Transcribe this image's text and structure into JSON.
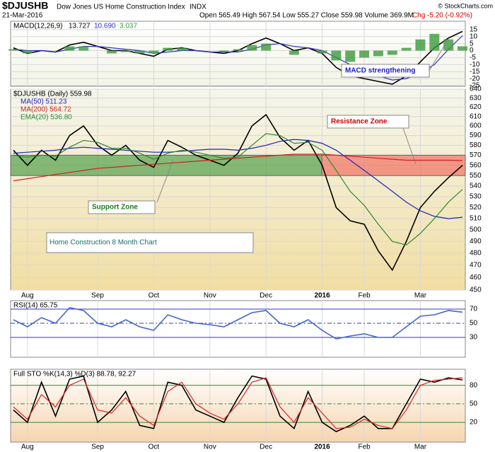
{
  "header": {
    "symbol": "$DJUSHB",
    "name": "Dow Jones US Home Construction Index",
    "exchange": "INDX",
    "date": "21-Mar-2016",
    "ohlc": "Open 565.49 High 567.54 Low 555.27 Close 559.98 Volume 369.9M",
    "change": "Chg -5.20 (-0.92%)",
    "credit": "© StockCharts.com"
  },
  "chart_data": [
    {
      "type": "line",
      "legend": "MACD(12,26,9)",
      "ylim": [
        -25.5,
        21
      ],
      "yticks": [
        15,
        10,
        5,
        0,
        -5,
        -10,
        -15,
        -20,
        -25
      ],
      "grid": true,
      "annotation": "MACD strengthening",
      "series": [
        {
          "name": "13.727",
          "color": "#000000",
          "values": [
            2,
            -2,
            0,
            -1,
            4,
            6,
            3,
            0,
            0,
            -2,
            -4,
            1,
            2,
            0,
            -1,
            -2,
            0,
            5,
            9,
            5,
            0,
            2,
            -2,
            -12,
            -18,
            -20,
            -22,
            -24,
            -18,
            -8,
            2,
            9,
            13.727
          ]
        },
        {
          "name": "10.690",
          "color": "#3333cc",
          "values": [
            1,
            0,
            0,
            -1,
            1,
            3,
            3,
            2,
            1,
            0,
            -2,
            -1,
            0,
            0,
            -1,
            -1,
            -1,
            1,
            4,
            5,
            3,
            2,
            0,
            -5,
            -10,
            -15,
            -18,
            -21,
            -20,
            -16,
            -10,
            1,
            10.69
          ]
        },
        {
          "name": "3.037",
          "type": "bar",
          "color": "#3c9a3c",
          "values": [
            1,
            -2,
            0,
            0,
            3,
            3,
            0,
            -2,
            -1,
            -2,
            -2,
            2,
            2,
            0,
            0,
            -1,
            1,
            4,
            5,
            0,
            -3,
            0,
            -2,
            -7,
            -8,
            -5,
            -4,
            -3,
            2,
            8,
            12,
            8,
            3.037
          ]
        }
      ]
    },
    {
      "type": "line",
      "legend": "$DJUSHB (Daily) 559.98",
      "log_scale": true,
      "ylim": [
        450,
        640
      ],
      "yticks": [
        450,
        460,
        470,
        480,
        490,
        500,
        510,
        520,
        530,
        540,
        550,
        560,
        570,
        580,
        590,
        600,
        610,
        620,
        630,
        640
      ],
      "grid": true,
      "categories": [
        null,
        "Aug",
        null,
        null,
        null,
        null,
        "Sep",
        null,
        null,
        null,
        "Oct",
        null,
        null,
        null,
        "Nov",
        null,
        null,
        null,
        "Dec",
        null,
        null,
        null,
        "2016",
        null,
        null,
        "Feb",
        null,
        null,
        null,
        "Mar",
        null,
        null,
        null
      ],
      "title": "Home Construction 8 Month Chart",
      "zones": [
        {
          "label": "Support Zone",
          "range": [
            550,
            570
          ],
          "color": "rgba(40,140,40,0.55)"
        },
        {
          "label": "Resistance Zone",
          "range": [
            550,
            570
          ],
          "color": "rgba(240,80,70,0.55)"
        }
      ],
      "series": [
        {
          "name": "$DJUSHB",
          "color": "#000000",
          "values": [
            575,
            560,
            575,
            565,
            590,
            600,
            580,
            570,
            580,
            565,
            558,
            585,
            578,
            570,
            565,
            560,
            572,
            600,
            612,
            588,
            575,
            585,
            560,
            520,
            508,
            505,
            482,
            466,
            490,
            520,
            535,
            548,
            559.98
          ]
        },
        {
          "name": "MA(50) 511.23",
          "color": "#2222bb",
          "values": [
            572,
            573,
            574,
            575,
            577,
            578,
            577,
            576,
            575,
            574,
            573,
            573,
            574,
            575,
            576,
            576,
            575,
            577,
            580,
            584,
            586,
            585,
            582,
            575,
            565,
            555,
            545,
            535,
            525,
            517,
            512,
            510,
            511.23
          ]
        },
        {
          "name": "MA(200) 564.72",
          "color": "#cc2222",
          "values": [
            545,
            547,
            549,
            551,
            553,
            555,
            557,
            558,
            559,
            560,
            561,
            562,
            563,
            564,
            565,
            566,
            567,
            568,
            569,
            570,
            571,
            571,
            571,
            570,
            569,
            568,
            567,
            566,
            565,
            565,
            565,
            565,
            564.72
          ]
        },
        {
          "name": "EMA(20) 536.80",
          "color": "#2e8b2e",
          "values": [
            570,
            568,
            570,
            569,
            578,
            585,
            583,
            577,
            577,
            572,
            566,
            572,
            575,
            573,
            570,
            567,
            568,
            580,
            592,
            590,
            582,
            583,
            575,
            555,
            535,
            522,
            505,
            490,
            487,
            497,
            510,
            525,
            536.8
          ]
        }
      ]
    },
    {
      "type": "line",
      "legend": "RSI(14) 65.75",
      "ylim": [
        2,
        82
      ],
      "yticks": [
        70,
        50,
        30
      ],
      "grid": true,
      "grid_color": "#3333cc",
      "series": [
        {
          "name": "RSI(14)",
          "color": "#4466cc",
          "values": [
            55,
            45,
            58,
            50,
            72,
            68,
            50,
            45,
            55,
            45,
            40,
            62,
            55,
            50,
            48,
            45,
            55,
            65,
            68,
            50,
            45,
            55,
            40,
            28,
            32,
            35,
            30,
            30,
            45,
            60,
            62,
            68,
            65.75
          ]
        }
      ]
    },
    {
      "type": "line",
      "legend": "Full STO %K(14,3) %D(3) 88.78, 92.27",
      "ylim": [
        -12,
        106
      ],
      "yticks": [
        80,
        50,
        20
      ],
      "grid": true,
      "grid_color": "#2e8b2e",
      "categories": [
        null,
        "Aug",
        null,
        null,
        null,
        null,
        "Sep",
        null,
        null,
        null,
        "Oct",
        null,
        null,
        null,
        "Nov",
        null,
        null,
        null,
        "Dec",
        null,
        null,
        null,
        "2016",
        null,
        null,
        "Feb",
        null,
        null,
        null,
        "Mar",
        null,
        null,
        null
      ],
      "series": [
        {
          "name": "%K(14,3)",
          "color": "#000000",
          "values": [
            40,
            20,
            85,
            30,
            90,
            95,
            20,
            40,
            70,
            15,
            10,
            85,
            80,
            40,
            30,
            20,
            60,
            95,
            90,
            30,
            10,
            70,
            20,
            5,
            15,
            30,
            10,
            10,
            50,
            90,
            85,
            92,
            88.78
          ]
        },
        {
          "name": "%D(3)",
          "color": "#dd2222",
          "values": [
            45,
            25,
            65,
            45,
            80,
            90,
            40,
            35,
            60,
            30,
            15,
            70,
            85,
            50,
            35,
            25,
            50,
            85,
            92,
            45,
            20,
            60,
            35,
            10,
            12,
            25,
            15,
            10,
            40,
            80,
            88,
            90,
            92.27
          ]
        }
      ]
    }
  ]
}
